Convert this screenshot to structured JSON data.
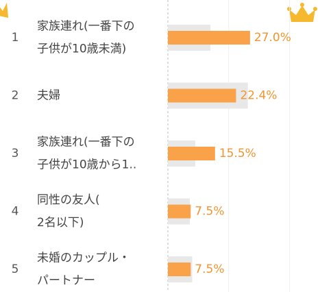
{
  "chart_data": {
    "type": "ranked-bar",
    "ranks": [
      1,
      2,
      3,
      4,
      5
    ],
    "categories": [
      [
        "家族連れ(一番下の",
        "子供が10歳未満)"
      ],
      [
        "夫婦"
      ],
      [
        "家族連れ(一番下の",
        "子供が10歳から1.."
      ],
      [
        "同性の友人(",
        "2名以下)"
      ],
      [
        "未婚のカップル・",
        "パートナー"
      ]
    ],
    "series": [
      {
        "color": "#f9a24a",
        "values": [
          27.0,
          22.4,
          15.5,
          7.5,
          7.5
        ],
        "value_labels": [
          "27.0%",
          "22.4%",
          "15.5%",
          "7.5%",
          "7.5%"
        ]
      },
      {
        "color": "#e8e8e8",
        "values": [
          14,
          26.3,
          9,
          7.2,
          8
        ]
      }
    ],
    "xlim": [
      0,
      50
    ],
    "xticks": [
      0,
      20,
      40
    ],
    "grid": true
  }
}
